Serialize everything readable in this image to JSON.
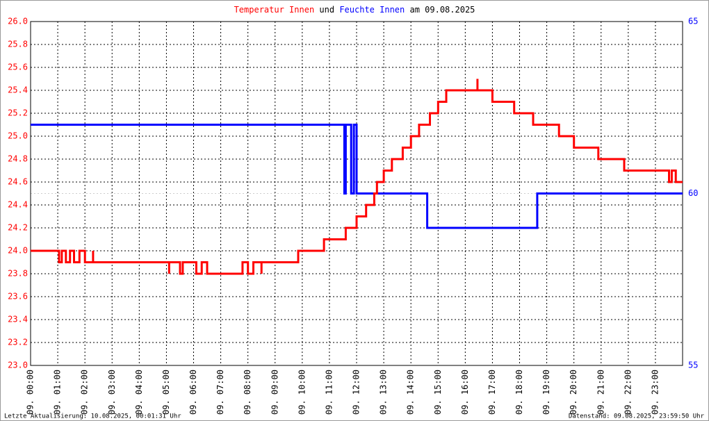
{
  "chart_data": {
    "type": "line",
    "title": [
      "Temperatur Innen",
      "und",
      "Feuchte Innen",
      "am 09.08.2025"
    ],
    "footer_left": "Letzte Aktualisierung: 10.08.2025, 00:01:31 Uhr",
    "footer_right": "Datenstand: 09.08.2025, 23:59:50 Uhr",
    "grid": true,
    "xlim": [
      0,
      24
    ],
    "xticks": [
      {
        "value": 0,
        "label": "09. 00:00"
      },
      {
        "value": 1,
        "label": "09. 01:00"
      },
      {
        "value": 2,
        "label": "09. 02:00"
      },
      {
        "value": 3,
        "label": "09. 03:00"
      },
      {
        "value": 4,
        "label": "09. 04:00"
      },
      {
        "value": 5,
        "label": "09. 05:00"
      },
      {
        "value": 6,
        "label": "09. 06:00"
      },
      {
        "value": 7,
        "label": "09. 07:00"
      },
      {
        "value": 8,
        "label": "09. 08:00"
      },
      {
        "value": 9,
        "label": "09. 09:00"
      },
      {
        "value": 10,
        "label": "09. 10:00"
      },
      {
        "value": 11,
        "label": "09. 11:00"
      },
      {
        "value": 12,
        "label": "09. 12:00"
      },
      {
        "value": 13,
        "label": "09. 13:00"
      },
      {
        "value": 14,
        "label": "09. 14:00"
      },
      {
        "value": 15,
        "label": "09. 15:00"
      },
      {
        "value": 16,
        "label": "09. 16:00"
      },
      {
        "value": 17,
        "label": "09. 17:00"
      },
      {
        "value": 18,
        "label": "09. 18:00"
      },
      {
        "value": 19,
        "label": "09. 19:00"
      },
      {
        "value": 20,
        "label": "09. 20:00"
      },
      {
        "value": 21,
        "label": "09. 21:00"
      },
      {
        "value": 22,
        "label": "09. 22:00"
      },
      {
        "value": 23,
        "label": "09. 23:00"
      }
    ],
    "ylim": [
      23.0,
      26.0
    ],
    "yticks": [
      {
        "value": 23,
        "label": "23.0"
      },
      23.2,
      23.4,
      23.6,
      23.8,
      {
        "value": 24,
        "label": "24.0"
      },
      24.2,
      24.4,
      24.6,
      24.8,
      {
        "value": 25,
        "label": "25.0"
      },
      25.2,
      25.4,
      25.6,
      25.8,
      {
        "value": 26,
        "label": "26.0"
      }
    ],
    "y2lim": [
      55,
      65
    ],
    "y2ticks": [
      55,
      60,
      65
    ],
    "series": [
      {
        "name": "Temperatur Innen",
        "color": "#ff0000",
        "x": [
          0,
          1.05,
          1.05,
          1.15,
          1.15,
          1.3,
          1.3,
          1.45,
          1.45,
          1.6,
          1.6,
          1.8,
          1.8,
          2.0,
          2.0,
          2.3,
          2.3,
          2.3,
          5.1,
          5.1,
          5.1,
          5.5,
          5.5,
          5.6,
          5.6,
          6.1,
          6.1,
          6.3,
          6.3,
          6.5,
          6.5,
          7.8,
          7.8,
          8.0,
          8.0,
          8.2,
          8.2,
          8.5,
          8.5,
          8.5,
          9.85,
          9.85,
          10.8,
          10.8,
          11.6,
          11.6,
          12.0,
          12.0,
          12.35,
          12.35,
          12.65,
          12.65,
          12.75,
          12.75,
          13.0,
          13.0,
          13.3,
          13.3,
          13.7,
          13.7,
          14.0,
          14.0,
          14.3,
          14.3,
          14.7,
          14.7,
          15.0,
          15.0,
          15.3,
          15.3,
          16.45,
          16.45,
          16.45,
          17.0,
          17.0,
          17.8,
          17.8,
          18.5,
          18.5,
          19.45,
          19.45,
          20.0,
          20.0,
          20.9,
          20.9,
          21.85,
          21.85,
          23.5,
          23.5,
          23.6,
          23.6,
          23.75,
          23.75,
          24
        ],
        "values": [
          24.0,
          24.0,
          23.9,
          23.9,
          24.0,
          24.0,
          23.9,
          23.9,
          24.0,
          24.0,
          23.9,
          23.9,
          24.0,
          24.0,
          23.9,
          23.9,
          24.0,
          23.9,
          23.9,
          23.8,
          23.9,
          23.9,
          23.8,
          23.8,
          23.9,
          23.9,
          23.8,
          23.8,
          23.9,
          23.9,
          23.8,
          23.8,
          23.9,
          23.9,
          23.8,
          23.8,
          23.9,
          23.9,
          23.8,
          23.9,
          23.9,
          24.0,
          24.0,
          24.1,
          24.1,
          24.2,
          24.2,
          24.3,
          24.3,
          24.4,
          24.4,
          24.5,
          24.5,
          24.6,
          24.6,
          24.7,
          24.7,
          24.8,
          24.8,
          24.9,
          24.9,
          25.0,
          25.0,
          25.1,
          25.1,
          25.2,
          25.2,
          25.3,
          25.3,
          25.4,
          25.4,
          25.5,
          25.4,
          25.4,
          25.3,
          25.3,
          25.2,
          25.2,
          25.1,
          25.1,
          25.0,
          25.0,
          24.9,
          24.9,
          24.8,
          24.8,
          24.7,
          24.7,
          24.6,
          24.6,
          24.7,
          24.7,
          24.6,
          24.6
        ]
      },
      {
        "name": "Feuchte Innen",
        "color": "#0000ff",
        "axis": "y2",
        "x": [
          0,
          11.55,
          11.55,
          11.6,
          11.6,
          11.8,
          11.8,
          11.9,
          11.9,
          12.0,
          12.0,
          14.6,
          14.6,
          18.65,
          18.65,
          24
        ],
        "values": [
          62,
          62,
          60,
          60,
          62,
          62,
          60,
          60,
          62,
          62,
          60,
          60,
          59,
          59,
          60,
          60
        ]
      }
    ]
  }
}
